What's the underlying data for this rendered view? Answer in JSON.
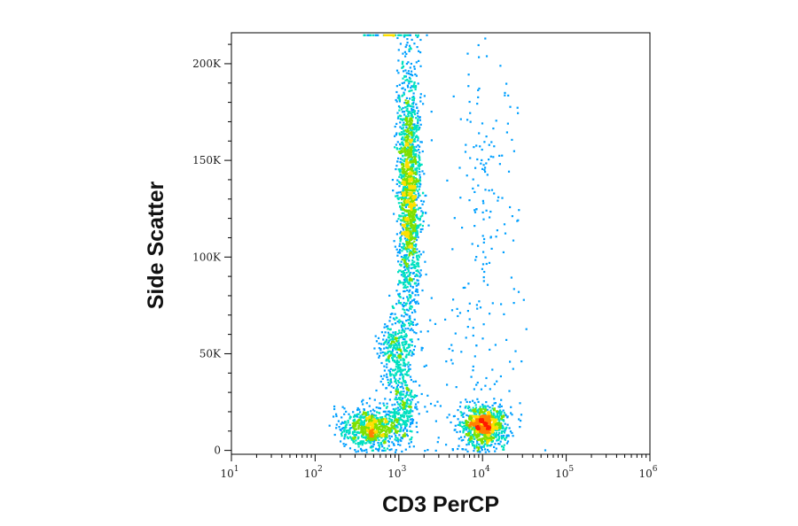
{
  "chart_data": {
    "type": "scatter",
    "subtype": "flow-cytometry-density-dot-plot",
    "title": "",
    "xlabel": "CD3 PerCP",
    "ylabel": "Side Scatter",
    "xscale": "log",
    "yscale": "linear",
    "xlim": [
      10,
      1000000
    ],
    "ylim": [
      -2000,
      216000
    ],
    "xticks": [
      {
        "value": 10,
        "base": "10",
        "exp": "1"
      },
      {
        "value": 100,
        "base": "10",
        "exp": "2"
      },
      {
        "value": 1000,
        "base": "10",
        "exp": "3"
      },
      {
        "value": 10000,
        "base": "10",
        "exp": "4"
      },
      {
        "value": 100000,
        "base": "10",
        "exp": "5"
      },
      {
        "value": 1000000,
        "base": "10",
        "exp": "6"
      }
    ],
    "yticks": [
      {
        "value": 0,
        "label": "0"
      },
      {
        "value": 50000,
        "label": "50K"
      },
      {
        "value": 100000,
        "label": "100K"
      },
      {
        "value": 150000,
        "label": "150K"
      },
      {
        "value": 200000,
        "label": "200K"
      }
    ],
    "grid": false,
    "legend": "none",
    "density_colormap": [
      "#1a1aff",
      "#00a0ff",
      "#00e0c0",
      "#7fe000",
      "#ffe000",
      "#ff8000",
      "#ff1a00"
    ],
    "populations": [
      {
        "x_center": 450,
        "y_center": 12000,
        "x_spread_log": 0.17,
        "y_spread": 5500,
        "weight": 0.15
      },
      {
        "x_center": 10000,
        "y_center": 13000,
        "x_spread_log": 0.13,
        "y_spread": 5000,
        "weight": 0.19
      },
      {
        "x_center": 1300,
        "y_center": 135000,
        "x_spread_log": 0.07,
        "y_spread": 32000,
        "weight": 0.33
      },
      {
        "x_center": 900,
        "y_center": 52000,
        "x_spread_log": 0.1,
        "y_spread": 10000,
        "weight": 0.07
      },
      {
        "x_center": 1100,
        "y_center": 22000,
        "x_spread_log": 0.08,
        "y_spread": 9000,
        "weight": 0.05
      },
      {
        "x_center": 10000,
        "y_center": 130000,
        "x_spread_log": 0.2,
        "y_spread": 40000,
        "weight": 0.03
      },
      {
        "x_center": 6000,
        "y_center": 35000,
        "x_spread_log": 0.4,
        "y_spread": 30000,
        "weight": 0.02
      }
    ]
  }
}
